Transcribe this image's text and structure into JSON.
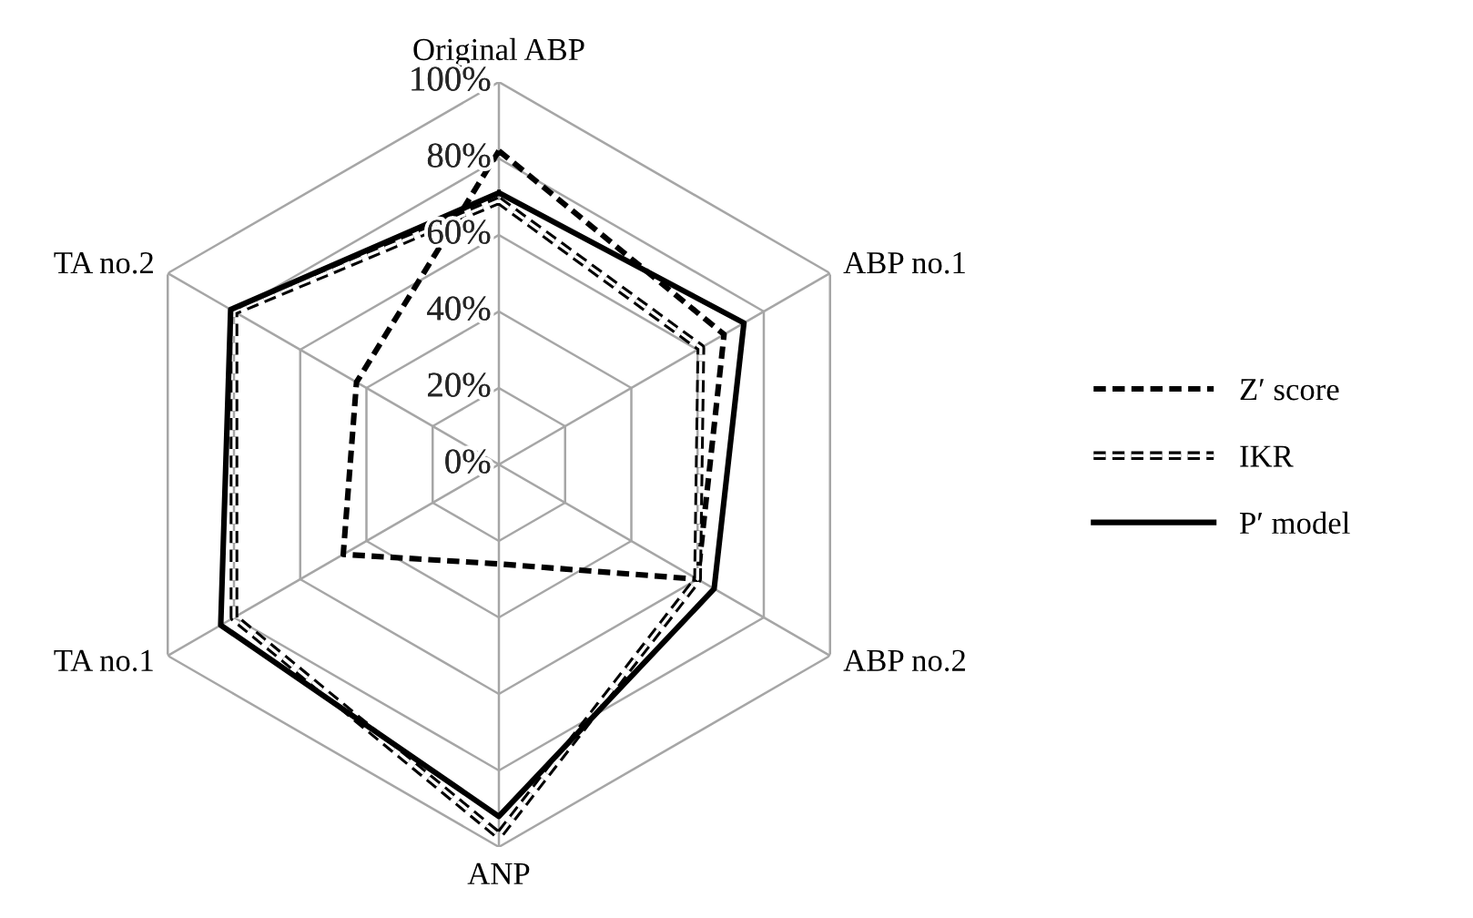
{
  "chart_data": {
    "type": "radar",
    "categories": [
      "Original ABP",
      "ABP no.1",
      "ABP no.2",
      "ANP",
      "TA no.1",
      "TA no.2"
    ],
    "series": [
      {
        "name": "Z′ score",
        "color": "#000000",
        "line_style": "dashed",
        "values": [
          82,
          68,
          60,
          26,
          47,
          43
        ]
      },
      {
        "name": "IKR",
        "color": "#ffffff",
        "line_style": "dashed",
        "values": [
          69,
          61,
          60,
          97,
          80,
          80
        ]
      },
      {
        "name": "P′ model",
        "color": "#000000",
        "line_style": "solid",
        "values": [
          71,
          74,
          65,
          92,
          84,
          81
        ]
      }
    ],
    "ylim": [
      0,
      100
    ],
    "yticks": [
      {
        "value": 0,
        "label": "0%"
      },
      {
        "value": 20,
        "label": "20%"
      },
      {
        "value": 40,
        "label": "40%"
      },
      {
        "value": 60,
        "label": "60%"
      },
      {
        "value": 80,
        "label": "80%"
      },
      {
        "value": 100,
        "label": "100%"
      }
    ],
    "grid": true,
    "legend": "right",
    "marker": "none"
  }
}
